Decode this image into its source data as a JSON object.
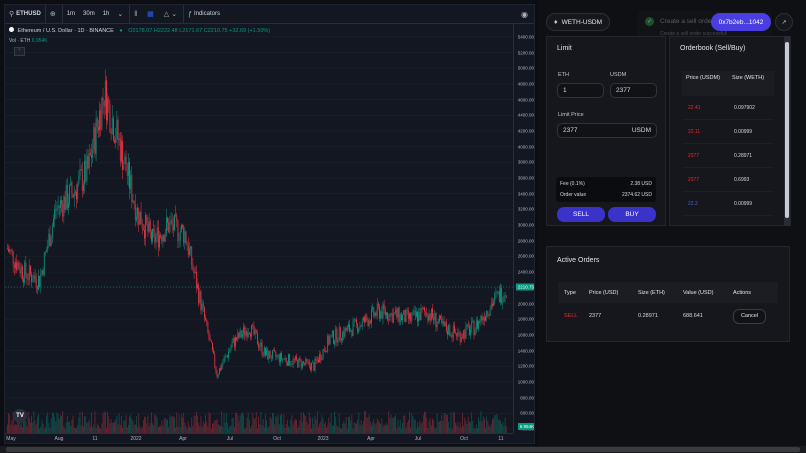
{
  "colors": {
    "up": "#089981",
    "down": "#f23645",
    "accent": "#3b32c9",
    "addr": "#4a3ee0",
    "sell_text": "#e0302d",
    "buy_text": "#4b61d8"
  },
  "toolbar": {
    "symbol": "ETHUSD",
    "intervals": [
      "1m",
      "30m",
      "1h"
    ],
    "indicators_label": "Indicators"
  },
  "chart_info": {
    "title": "Ethereum / U.S. Dollar · 1D · BINANCE",
    "ohlc": "O2178.07 H2222.48 L2171.67 C2210.75 +32.69 (+1.50%)",
    "volume_label": "Vol · ETH",
    "volume_value": "6.954K"
  },
  "chart_data": {
    "type": "candlestick",
    "x": [
      "2021-05",
      "2021-06",
      "2021-07",
      "2021-08",
      "2021-09",
      "2021-10",
      "2021-11",
      "2021-12",
      "2022-01",
      "2022-02",
      "2022-03",
      "2022-04",
      "2022-05",
      "2022-06",
      "2022-07",
      "2022-08",
      "2022-09",
      "2022-10",
      "2022-11",
      "2022-12",
      "2023-01",
      "2023-02",
      "2023-03",
      "2023-04",
      "2023-05",
      "2023-06",
      "2023-07",
      "2023-08",
      "2023-09",
      "2023-10",
      "2023-11",
      "2023-12"
    ],
    "series": [
      {
        "values": [
          2700,
          2400,
          2300,
          3200,
          3400,
          3700,
          4700,
          4000,
          3200,
          2800,
          3000,
          2900,
          2000,
          1100,
          1500,
          1700,
          1350,
          1300,
          1250,
          1200,
          1550,
          1650,
          1750,
          1900,
          1850,
          1800,
          1900,
          1700,
          1600,
          1700,
          2000,
          2210
        ]
      }
    ],
    "ylim": [
      400,
      5500
    ],
    "y_ticks": [
      "5400.00",
      "5200.00",
      "5000.00",
      "4800.00",
      "4600.00",
      "4400.00",
      "4200.00",
      "4000.00",
      "3800.00",
      "3600.00",
      "3400.00",
      "3200.00",
      "3000.00",
      "2800.00",
      "2600.00",
      "2400.00",
      "2200.00",
      "2000.00",
      "1800.00",
      "1600.00",
      "1400.00",
      "1200.00",
      "1000.00",
      "800.00",
      "600.00",
      "400.00"
    ],
    "x_ticks": [
      "May",
      "Aug",
      "11",
      "2022",
      "Apr",
      "Jul",
      "Oct",
      "2023",
      "Apr",
      "Jul",
      "Oct",
      "11"
    ],
    "last_price": "2210.75",
    "last_volume": "6.954K"
  },
  "header": {
    "pair": "WETH-USDM",
    "toast_title": "Create a sell order",
    "toast_sub": "Create a sell order successful!",
    "address": "0x7b2eb...1042"
  },
  "limit": {
    "title": "Limit",
    "eth_label": "ETH",
    "eth_value": "1",
    "usdm_label": "USDM",
    "usdm_value": "2377",
    "limit_price_label": "Limit Price",
    "limit_price_value": "2377",
    "limit_price_unit": "USDM",
    "fee_label": "Fee (0.1%)",
    "fee_value": "2.38 USD",
    "order_value_label": "Order value",
    "order_value_value": "2374.62 USD",
    "sell_label": "SELL",
    "buy_label": "BUY"
  },
  "orderbook": {
    "title": "Orderbook (Sell/Buy)",
    "col_price": "Price (USDM)",
    "col_size": "Size (WETH)",
    "rows": [
      {
        "price": "22.41",
        "size": "0.097902",
        "side": "sell"
      },
      {
        "price": "22.11",
        "size": "0.00999",
        "side": "sell"
      },
      {
        "price": "2377",
        "size": "0.28971",
        "side": "sell"
      },
      {
        "price": "2377",
        "size": "0.6993",
        "side": "sell"
      },
      {
        "price": "22.2",
        "size": "0.00999",
        "side": "buy"
      }
    ]
  },
  "active_orders": {
    "title": "Active Orders",
    "columns": [
      "Type",
      "Price (USD)",
      "Size (ETH)",
      "Value (USD)",
      "Actions"
    ],
    "rows": [
      {
        "type": "SELL",
        "price": "2377",
        "size": "0.28971",
        "value": "688.641",
        "action": "Cancel"
      }
    ]
  }
}
